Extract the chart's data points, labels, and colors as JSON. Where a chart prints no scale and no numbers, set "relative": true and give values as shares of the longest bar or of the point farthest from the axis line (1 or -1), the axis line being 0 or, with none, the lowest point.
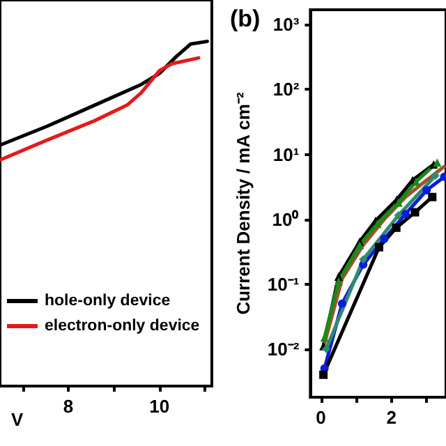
{
  "chart_data": [
    {
      "type": "line",
      "xlabel": "V",
      "relative": true,
      "xlim": [
        6.5,
        11.15
      ],
      "xticks": [
        {
          "value": 7,
          "label": null
        },
        8,
        {
          "value": 9,
          "label": null
        },
        10,
        {
          "value": 11,
          "label": null
        }
      ],
      "grid": false,
      "legend": "bottom left",
      "marker": "none",
      "line_style": "solid",
      "series": [
        {
          "name": "hole-only device",
          "color": "#000000",
          "x": [
            6.52,
            7.54,
            8.58,
            9.6,
            10.0,
            10.37,
            10.68,
            11.05
          ],
          "values": [
            0.7,
            0.754,
            0.815,
            0.875,
            0.907,
            0.956,
            0.992,
            1.0
          ]
        },
        {
          "name": "electron-only device",
          "color": "#e31a1c",
          "x": [
            6.52,
            7.54,
            8.58,
            9.29,
            9.6,
            10.0,
            10.27,
            10.86
          ],
          "values": [
            0.657,
            0.714,
            0.77,
            0.815,
            0.851,
            0.915,
            0.935,
            0.952
          ]
        }
      ]
    },
    {
      "type": "line",
      "title": "(b)",
      "ylabel": "Current Density / mA cm⁻²",
      "log": "y",
      "xlim": [
        -0.3,
        3.55
      ],
      "xticks": [
        0,
        {
          "value": 1,
          "label": null
        },
        2,
        {
          "value": 3,
          "label": null
        }
      ],
      "ylim": [
        0.0018,
        1700
      ],
      "yticks": [
        {
          "value": 0.01,
          "label": "10⁻²"
        },
        {
          "value": 0.1,
          "label": "10⁻¹"
        },
        {
          "value": 1,
          "label": "10⁰"
        },
        {
          "value": 10,
          "label": "10¹"
        },
        {
          "value": 100,
          "label": "10²"
        },
        {
          "value": 1000,
          "label": "10³"
        }
      ],
      "grid": false,
      "line_style": "solid",
      "series": [
        {
          "color": "#000000",
          "marker": "triangle",
          "x": [
            0.07,
            0.5,
            1.1,
            1.55,
            2.15,
            2.6,
            3.2
          ],
          "values": [
            0.011,
            0.13,
            0.45,
            0.95,
            2.0,
            4,
            7
          ]
        },
        {
          "color": "#a0522d",
          "marker": "none",
          "x": [
            0.1,
            0.6,
            1.2,
            1.8,
            2.4,
            3.0,
            3.5
          ],
          "values": [
            0.012,
            0.12,
            0.4,
            1.0,
            2.2,
            4,
            6.5
          ]
        },
        {
          "color": "#1a8a1a",
          "marker": "triangle",
          "x": [
            0.1,
            0.5,
            1.1,
            1.6,
            2.2,
            2.7,
            3.3
          ],
          "values": [
            0.015,
            0.11,
            0.4,
            0.85,
            1.8,
            3.8,
            7.5
          ]
        },
        {
          "color": "#0a1ed8",
          "marker": "circle",
          "x": [
            0.1,
            0.6,
            1.2,
            1.8,
            2.4,
            3.0,
            3.5
          ],
          "values": [
            0.005,
            0.05,
            0.2,
            0.5,
            1.2,
            2.8,
            4.5
          ]
        },
        {
          "color": "#2e8b6f",
          "marker": "diamond",
          "x": [
            0.15,
            1.2,
            2.2,
            3.25
          ],
          "values": [
            0.01,
            0.24,
            1.15,
            4.7
          ]
        },
        {
          "color": "#000000",
          "marker": "square",
          "x": [
            0.07,
            1.65,
            2.14,
            2.67,
            3.16
          ],
          "values": [
            0.004,
            0.37,
            0.74,
            1.28,
            2.2
          ]
        }
      ]
    }
  ]
}
